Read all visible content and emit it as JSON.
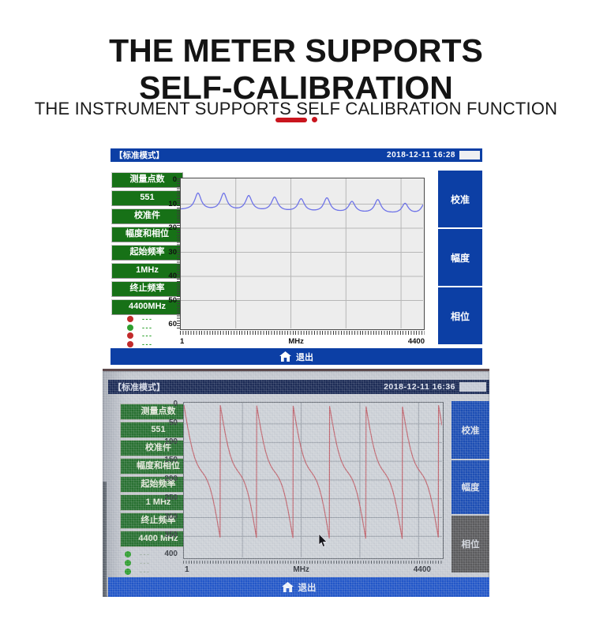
{
  "page": {
    "title_line1": "THE METER SUPPORTS",
    "title_line2": "SELF-CALIBRATION",
    "subtitle": "THE INSTRUMENT SUPPORTS SELF CALIBRATION FUNCTION",
    "accent_color": "#c9151e"
  },
  "screen1": {
    "mode_label": "【标准模式】",
    "datetime": "2018-12-11 16:28",
    "sidebar": [
      "测量点数",
      "551",
      "校准件",
      "幅度和相位",
      "起始频率",
      "1MHz",
      "终止频率",
      "4400MHz"
    ],
    "leds": [
      "#c22b2b",
      "#2f9e2f",
      "#c22b2b",
      "#c22b2b"
    ],
    "led_dash": "---",
    "buttons": [
      {
        "label": "校准",
        "bg": "#0c3fa5"
      },
      {
        "label": "幅度",
        "bg": "#0c3fa5"
      },
      {
        "label": "相位",
        "bg": "#0c3fa5"
      }
    ],
    "exit_label": "退出",
    "header_bg": "#0c3fa5"
  },
  "screen2": {
    "mode_label": "【标准模式】",
    "datetime": "2018-12-11 16:36",
    "sidebar": [
      "测量点数",
      "551",
      "校准件",
      "幅度和相位",
      "起始频率",
      "1 MHz",
      "终止频率",
      "4400 MHz"
    ],
    "leds": [
      "#2f9e2f",
      "#2f9e2f",
      "#2f9e2f",
      "#2f9e2f"
    ],
    "led_dash": "---",
    "buttons": [
      {
        "label": "校准",
        "bg": "#1b4db4"
      },
      {
        "label": "幅度",
        "bg": "#1b4db4"
      },
      {
        "label": "相位",
        "bg": "#5a5a5c"
      }
    ],
    "selected_button": "相位",
    "exit_label": "退出",
    "header_bg": "#1b2a55"
  },
  "chart_data": [
    {
      "id": "amplitude_vs_frequency_screen1",
      "type": "line",
      "title": "",
      "xlabel": "MHz",
      "x_left_label": "1",
      "x_center_label": "MHz",
      "x_right_label": "4400",
      "x_range": [
        1,
        4400
      ],
      "y_ticks": [
        0,
        10,
        20,
        30,
        40,
        50,
        60
      ],
      "y_axis_direction": "down",
      "x_gridlines_mhz": [
        1000,
        2000,
        3000,
        4000
      ],
      "grid": true,
      "legend": false,
      "series": [
        {
          "name": "amplitude-trace",
          "color": "#6f74e8",
          "baseline_start": 12.4,
          "baseline_end": 14.4,
          "peak_width_mhz": 70,
          "peaks": [
            {
              "x": 313,
              "y": 5.6
            },
            {
              "x": 781,
              "y": 5.8
            },
            {
              "x": 1235,
              "y": 6.8
            },
            {
              "x": 1704,
              "y": 7.4
            },
            {
              "x": 2186,
              "y": 8.1
            },
            {
              "x": 2654,
              "y": 7.7
            },
            {
              "x": 3108,
              "y": 9.2
            },
            {
              "x": 3577,
              "y": 8.4
            },
            {
              "x": 4073,
              "y": 10.0
            },
            {
              "x": 4430,
              "y": 9.8
            }
          ]
        }
      ]
    },
    {
      "id": "phase_vs_frequency_screen2",
      "type": "line",
      "title": "",
      "xlabel": "MHz",
      "x_left_label": "1",
      "x_center_label": "MHz",
      "x_right_label": "4400",
      "x_range": [
        1,
        4400
      ],
      "y_ticks": [
        0,
        50,
        100,
        150,
        200,
        250,
        300,
        350,
        400
      ],
      "y_axis_direction": "down",
      "x_gridlines_mhz": [
        1000,
        2000,
        3000,
        4000
      ],
      "grid": true,
      "legend": false,
      "series": [
        {
          "name": "phase-trace",
          "color": "#bf5a64",
          "pattern": "sawtooth-wrap",
          "wrap_start_mhz": 1,
          "wrap_period_mhz": 620,
          "value_min": 0,
          "value_max": 357,
          "s_curve_coeff": 0.1
        }
      ]
    }
  ]
}
